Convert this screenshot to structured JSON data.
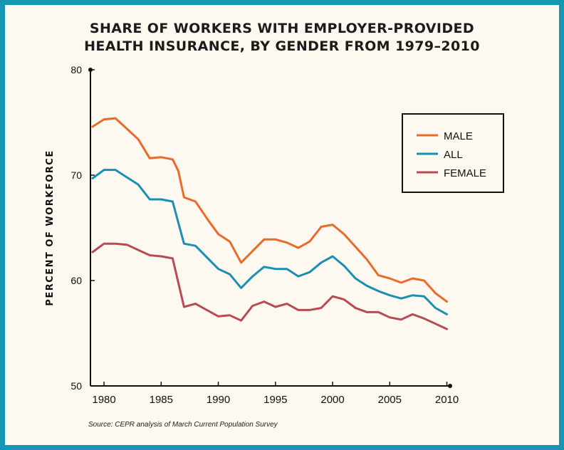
{
  "chart_data": {
    "type": "line",
    "title_lines": [
      "SHARE OF WORKERS WITH EMPLOYER-PROVIDED",
      "HEALTH INSURANCE, BY GENDER FROM 1979–2010"
    ],
    "ylabel": "PERCENT OF WORKFORCE",
    "xlabel": "",
    "xlim": [
      1979,
      2010.5
    ],
    "ylim": [
      50,
      80
    ],
    "x_ticks": [
      "1980",
      "1985",
      "1990",
      "1995",
      "2000",
      "2005",
      "2010"
    ],
    "y_ticks": [
      "50",
      "60",
      "70",
      "80"
    ],
    "grid": false,
    "legend_position": "top-right",
    "series": [
      {
        "name": "MALE",
        "color": "#ea6a2a",
        "points": [
          [
            1979,
            74.6
          ],
          [
            1980,
            75.3
          ],
          [
            1981,
            75.4
          ],
          [
            1982,
            74.4
          ],
          [
            1983,
            73.4
          ],
          [
            1984,
            71.6
          ],
          [
            1985,
            71.7
          ],
          [
            1986,
            71.5
          ],
          [
            1986.5,
            70.4
          ],
          [
            1987,
            67.9
          ],
          [
            1988,
            67.5
          ],
          [
            1989,
            65.9
          ],
          [
            1990,
            64.4
          ],
          [
            1991,
            63.7
          ],
          [
            1992,
            61.7
          ],
          [
            1993,
            62.8
          ],
          [
            1994,
            63.9
          ],
          [
            1995,
            63.9
          ],
          [
            1996,
            63.6
          ],
          [
            1997,
            63.1
          ],
          [
            1998,
            63.7
          ],
          [
            1999,
            65.1
          ],
          [
            1999.5,
            65.2
          ],
          [
            2000,
            65.3
          ],
          [
            2001,
            64.4
          ],
          [
            2002,
            63.2
          ],
          [
            2003,
            62.0
          ],
          [
            2004,
            60.5
          ],
          [
            2005,
            60.2
          ],
          [
            2006,
            59.8
          ],
          [
            2007,
            60.2
          ],
          [
            2008,
            60.0
          ],
          [
            2009,
            58.8
          ],
          [
            2010,
            58.0
          ]
        ]
      },
      {
        "name": "ALL",
        "color": "#1990b1",
        "points": [
          [
            1979,
            69.7
          ],
          [
            1980,
            70.5
          ],
          [
            1981,
            70.5
          ],
          [
            1982,
            69.8
          ],
          [
            1983,
            69.1
          ],
          [
            1984,
            67.7
          ],
          [
            1985,
            67.7
          ],
          [
            1986,
            67.5
          ],
          [
            1987,
            63.5
          ],
          [
            1988,
            63.3
          ],
          [
            1989,
            62.2
          ],
          [
            1990,
            61.1
          ],
          [
            1991,
            60.6
          ],
          [
            1992,
            59.3
          ],
          [
            1993,
            60.4
          ],
          [
            1994,
            61.3
          ],
          [
            1995,
            61.1
          ],
          [
            1996,
            61.1
          ],
          [
            1997,
            60.4
          ],
          [
            1998,
            60.8
          ],
          [
            1999,
            61.7
          ],
          [
            2000,
            62.3
          ],
          [
            2001,
            61.4
          ],
          [
            2002,
            60.2
          ],
          [
            2003,
            59.5
          ],
          [
            2004,
            59.0
          ],
          [
            2005,
            58.6
          ],
          [
            2006,
            58.3
          ],
          [
            2007,
            58.6
          ],
          [
            2008,
            58.5
          ],
          [
            2009,
            57.4
          ],
          [
            2010,
            56.8
          ]
        ]
      },
      {
        "name": "FEMALE",
        "color": "#b84a54",
        "points": [
          [
            1979,
            62.7
          ],
          [
            1980,
            63.5
          ],
          [
            1981,
            63.5
          ],
          [
            1982,
            63.4
          ],
          [
            1983,
            62.9
          ],
          [
            1984,
            62.4
          ],
          [
            1985,
            62.3
          ],
          [
            1986,
            62.1
          ],
          [
            1987,
            57.5
          ],
          [
            1988,
            57.8
          ],
          [
            1989,
            57.2
          ],
          [
            1990,
            56.6
          ],
          [
            1991,
            56.7
          ],
          [
            1992,
            56.2
          ],
          [
            1993,
            57.6
          ],
          [
            1994,
            58.0
          ],
          [
            1995,
            57.5
          ],
          [
            1996,
            57.8
          ],
          [
            1997,
            57.2
          ],
          [
            1998,
            57.2
          ],
          [
            1999,
            57.4
          ],
          [
            2000,
            58.5
          ],
          [
            2001,
            58.2
          ],
          [
            2002,
            57.4
          ],
          [
            2003,
            57.0
          ],
          [
            2004,
            57.0
          ],
          [
            2005,
            56.5
          ],
          [
            2006,
            56.3
          ],
          [
            2007,
            56.8
          ],
          [
            2008,
            56.4
          ],
          [
            2009,
            55.9
          ],
          [
            2010,
            55.4
          ]
        ]
      }
    ]
  },
  "source": "Source: CEPR analysis of March Current Population Survey"
}
